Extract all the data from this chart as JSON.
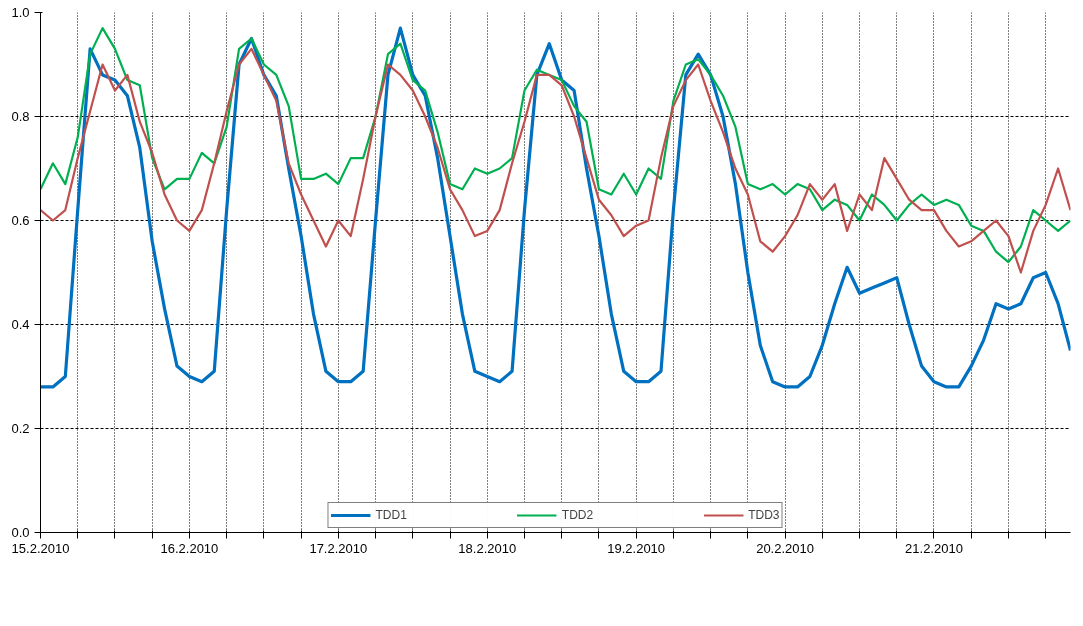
{
  "chart_data": {
    "type": "line",
    "x": [
      "2010-02-15T00:00",
      "2010-02-15T02:00",
      "2010-02-15T04:00",
      "2010-02-15T06:00",
      "2010-02-15T08:00",
      "2010-02-15T10:00",
      "2010-02-15T12:00",
      "2010-02-15T14:00",
      "2010-02-15T16:00",
      "2010-02-15T18:00",
      "2010-02-15T20:00",
      "2010-02-15T22:00",
      "2010-02-16T00:00",
      "2010-02-16T02:00",
      "2010-02-16T04:00",
      "2010-02-16T06:00",
      "2010-02-16T08:00",
      "2010-02-16T10:00",
      "2010-02-16T12:00",
      "2010-02-16T14:00",
      "2010-02-16T16:00",
      "2010-02-16T18:00",
      "2010-02-16T20:00",
      "2010-02-16T22:00",
      "2010-02-17T00:00",
      "2010-02-17T02:00",
      "2010-02-17T04:00",
      "2010-02-17T06:00",
      "2010-02-17T08:00",
      "2010-02-17T10:00",
      "2010-02-17T12:00",
      "2010-02-17T14:00",
      "2010-02-17T16:00",
      "2010-02-17T18:00",
      "2010-02-17T20:00",
      "2010-02-17T22:00",
      "2010-02-18T00:00",
      "2010-02-18T02:00",
      "2010-02-18T04:00",
      "2010-02-18T06:00",
      "2010-02-18T08:00",
      "2010-02-18T10:00",
      "2010-02-18T12:00",
      "2010-02-18T14:00",
      "2010-02-18T16:00",
      "2010-02-18T18:00",
      "2010-02-18T20:00",
      "2010-02-18T22:00",
      "2010-02-19T00:00",
      "2010-02-19T02:00",
      "2010-02-19T04:00",
      "2010-02-19T06:00",
      "2010-02-19T08:00",
      "2010-02-19T10:00",
      "2010-02-19T12:00",
      "2010-02-19T14:00",
      "2010-02-19T16:00",
      "2010-02-19T18:00",
      "2010-02-19T20:00",
      "2010-02-19T22:00",
      "2010-02-20T00:00",
      "2010-02-20T02:00",
      "2010-02-20T04:00",
      "2010-02-20T06:00",
      "2010-02-20T08:00",
      "2010-02-20T10:00",
      "2010-02-20T12:00",
      "2010-02-20T14:00",
      "2010-02-20T16:00",
      "2010-02-20T18:00",
      "2010-02-20T20:00",
      "2010-02-20T22:00",
      "2010-02-21T00:00",
      "2010-02-21T02:00",
      "2010-02-21T04:00",
      "2010-02-21T06:00",
      "2010-02-21T08:00",
      "2010-02-21T10:00",
      "2010-02-21T12:00",
      "2010-02-21T14:00",
      "2010-02-21T16:00",
      "2010-02-21T18:00",
      "2010-02-21T20:00",
      "2010-02-21T22:00"
    ],
    "series": [
      {
        "name": "TDD1",
        "color": "#0070c0",
        "values": [
          0.28,
          0.28,
          0.3,
          0.62,
          0.93,
          0.88,
          0.87,
          0.84,
          0.74,
          0.56,
          0.43,
          0.32,
          0.3,
          0.29,
          0.31,
          0.62,
          0.9,
          0.95,
          0.88,
          0.84,
          0.7,
          0.57,
          0.42,
          0.31,
          0.29,
          0.29,
          0.31,
          0.6,
          0.88,
          0.97,
          0.88,
          0.84,
          0.72,
          0.57,
          0.42,
          0.31,
          0.3,
          0.29,
          0.31,
          0.62,
          0.88,
          0.94,
          0.87,
          0.85,
          0.7,
          0.57,
          0.42,
          0.31,
          0.29,
          0.29,
          0.31,
          0.62,
          0.88,
          0.92,
          0.88,
          0.8,
          0.67,
          0.5,
          0.36,
          0.29,
          0.28,
          0.28,
          0.3,
          0.36,
          0.44,
          0.51,
          0.46,
          0.47,
          0.48,
          0.49,
          0.4,
          0.32,
          0.29,
          0.28,
          0.28,
          0.32,
          0.37,
          0.44,
          0.43,
          0.44,
          0.49,
          0.5,
          0.44,
          0.35
        ]
      },
      {
        "name": "TDD2",
        "color": "#00b050",
        "values": [
          0.66,
          0.71,
          0.67,
          0.76,
          0.92,
          0.97,
          0.93,
          0.87,
          0.86,
          0.72,
          0.66,
          0.68,
          0.68,
          0.73,
          0.71,
          0.78,
          0.93,
          0.95,
          0.9,
          0.88,
          0.82,
          0.68,
          0.68,
          0.69,
          0.67,
          0.72,
          0.72,
          0.8,
          0.92,
          0.94,
          0.87,
          0.85,
          0.77,
          0.67,
          0.66,
          0.7,
          0.69,
          0.7,
          0.72,
          0.85,
          0.89,
          0.88,
          0.87,
          0.82,
          0.79,
          0.66,
          0.65,
          0.69,
          0.65,
          0.7,
          0.68,
          0.83,
          0.9,
          0.91,
          0.88,
          0.84,
          0.78,
          0.67,
          0.66,
          0.67,
          0.65,
          0.67,
          0.66,
          0.62,
          0.64,
          0.63,
          0.6,
          0.65,
          0.63,
          0.6,
          0.63,
          0.65,
          0.63,
          0.64,
          0.63,
          0.59,
          0.58,
          0.54,
          0.52,
          0.55,
          0.62,
          0.6,
          0.58,
          0.6
        ]
      },
      {
        "name": "TDD3",
        "color": "#c0504d",
        "values": [
          0.62,
          0.6,
          0.62,
          0.72,
          0.81,
          0.9,
          0.85,
          0.88,
          0.79,
          0.73,
          0.65,
          0.6,
          0.58,
          0.62,
          0.71,
          0.81,
          0.9,
          0.93,
          0.88,
          0.83,
          0.71,
          0.65,
          0.6,
          0.55,
          0.6,
          0.57,
          0.68,
          0.8,
          0.9,
          0.88,
          0.85,
          0.8,
          0.74,
          0.66,
          0.62,
          0.57,
          0.58,
          0.62,
          0.71,
          0.79,
          0.88,
          0.88,
          0.86,
          0.8,
          0.72,
          0.64,
          0.61,
          0.57,
          0.59,
          0.6,
          0.72,
          0.82,
          0.87,
          0.9,
          0.83,
          0.77,
          0.7,
          0.65,
          0.56,
          0.54,
          0.57,
          0.61,
          0.67,
          0.64,
          0.67,
          0.58,
          0.65,
          0.62,
          0.72,
          0.68,
          0.64,
          0.62,
          0.62,
          0.58,
          0.55,
          0.56,
          0.58,
          0.6,
          0.57,
          0.5,
          0.58,
          0.63,
          0.7,
          0.62
        ]
      }
    ],
    "xlim": [
      "2010-02-15T00:00",
      "2010-02-21T22:00"
    ],
    "xticks": [
      {
        "value": "2010-02-15T00:00",
        "label": "15.2.2010"
      },
      {
        "value": "2010-02-15T06:00",
        "label": null
      },
      {
        "value": "2010-02-15T12:00",
        "label": null
      },
      {
        "value": "2010-02-15T18:00",
        "label": null
      },
      {
        "value": "2010-02-16T00:00",
        "label": "16.2.2010"
      },
      {
        "value": "2010-02-16T06:00",
        "label": null
      },
      {
        "value": "2010-02-16T12:00",
        "label": null
      },
      {
        "value": "2010-02-16T18:00",
        "label": null
      },
      {
        "value": "2010-02-17T00:00",
        "label": "17.2.2010"
      },
      {
        "value": "2010-02-17T06:00",
        "label": null
      },
      {
        "value": "2010-02-17T12:00",
        "label": null
      },
      {
        "value": "2010-02-17T18:00",
        "label": null
      },
      {
        "value": "2010-02-18T00:00",
        "label": "18.2.2010"
      },
      {
        "value": "2010-02-18T06:00",
        "label": null
      },
      {
        "value": "2010-02-18T12:00",
        "label": null
      },
      {
        "value": "2010-02-18T18:00",
        "label": null
      },
      {
        "value": "2010-02-19T00:00",
        "label": "19.2.2010"
      },
      {
        "value": "2010-02-19T06:00",
        "label": null
      },
      {
        "value": "2010-02-19T12:00",
        "label": null
      },
      {
        "value": "2010-02-19T18:00",
        "label": null
      },
      {
        "value": "2010-02-20T00:00",
        "label": "20.2.2010"
      },
      {
        "value": "2010-02-20T06:00",
        "label": null
      },
      {
        "value": "2010-02-20T12:00",
        "label": null
      },
      {
        "value": "2010-02-20T18:00",
        "label": null
      },
      {
        "value": "2010-02-21T00:00",
        "label": "21.2.2010"
      },
      {
        "value": "2010-02-21T06:00",
        "label": null
      },
      {
        "value": "2010-02-21T12:00",
        "label": null
      },
      {
        "value": "2010-02-21T18:00",
        "label": null
      }
    ],
    "ylim": [
      0,
      1
    ],
    "yticks": [
      {
        "value": 0,
        "label": "0.0"
      },
      0.2,
      0.4,
      0.6,
      0.8,
      {
        "value": 1,
        "label": "1.0"
      }
    ],
    "grid": true,
    "legend": "bottom",
    "marker": "none",
    "line_style": "solid"
  }
}
